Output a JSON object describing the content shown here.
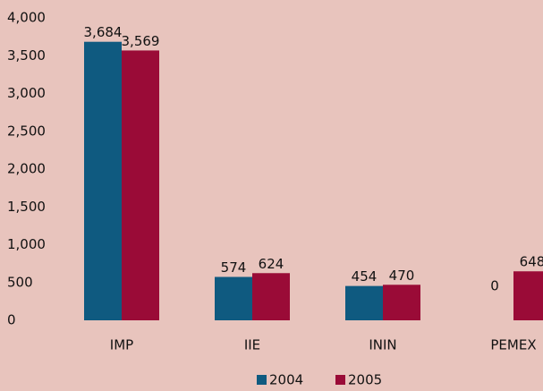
{
  "chart_data": {
    "type": "bar",
    "categories": [
      "IMP",
      "IIE",
      "ININ",
      "PEMEX"
    ],
    "series": [
      {
        "name": "2004",
        "color": "#0f5a80",
        "values": [
          3684,
          574,
          454,
          0
        ],
        "value_labels": [
          "3,684",
          "574",
          "454",
          "0"
        ]
      },
      {
        "name": "2005",
        "color": "#9a0b37",
        "values": [
          3569,
          624,
          470,
          648
        ],
        "value_labels": [
          "3,569",
          "624",
          "470",
          "648"
        ]
      }
    ],
    "ylim": [
      0,
      4000
    ],
    "yticks": [
      0,
      500,
      {
        "value": 1000,
        "label": "1,000"
      },
      {
        "value": 1500,
        "label": "1,500"
      },
      {
        "value": 2000,
        "label": "2,000"
      },
      {
        "value": 2500,
        "label": "2,500"
      },
      {
        "value": 3000,
        "label": "3,000"
      },
      {
        "value": 3500,
        "label": "3,500"
      },
      {
        "value": 4000,
        "label": "4,000"
      }
    ],
    "grid": false,
    "legend": "bottom"
  }
}
